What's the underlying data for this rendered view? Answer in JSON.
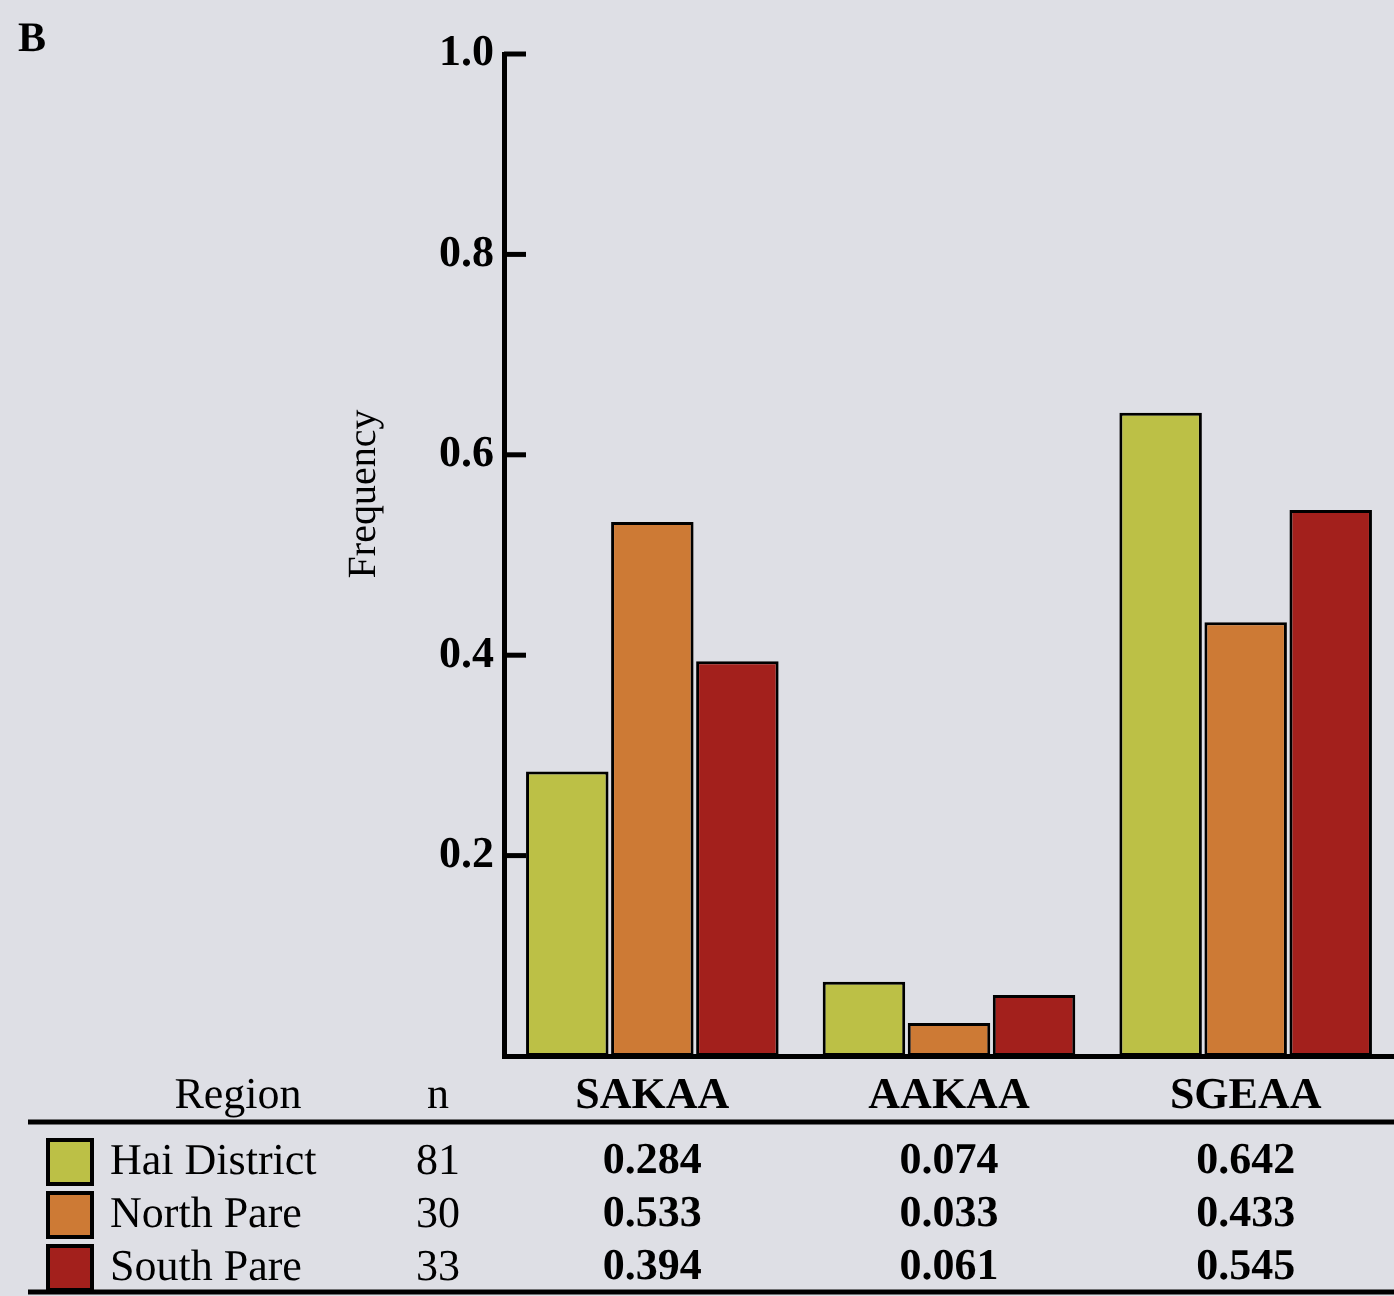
{
  "chart_data": {
    "type": "bar",
    "title": "B",
    "ylabel": "Frequency",
    "legend_title": "Region",
    "categories": [
      "SAKAA",
      "AAKAA",
      "SGEAA"
    ],
    "series": [
      {
        "name": "Hai District",
        "color": "#bcc046",
        "values": [
          0.284,
          0.074,
          0.642
        ]
      },
      {
        "name": "North Pare",
        "color": "#cd7a35",
        "values": [
          0.533,
          0.033,
          0.433
        ]
      },
      {
        "name": "South Pare",
        "color": "#a3201c",
        "values": [
          0.394,
          0.061,
          0.545
        ]
      }
    ],
    "ylim": [
      0,
      1
    ],
    "yticks": [
      0.2,
      0.4,
      0.6,
      0.8,
      {
        "value": 1,
        "label": "1.0"
      }
    ],
    "grid": false,
    "legend": "bottom",
    "data_labels": true,
    "annotations": [
      "n",
      "81",
      "30",
      "33"
    ]
  }
}
